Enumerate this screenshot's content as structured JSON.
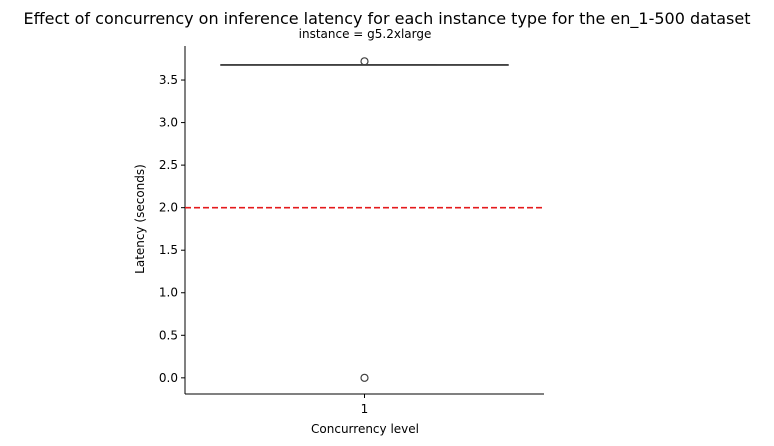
{
  "chart_data": {
    "type": "box",
    "title": "Effect of concurrency on inference latency for each instance type for the en_1-500 dataset",
    "subtitle": "instance = g5.2xlarge",
    "xlabel": "Concurrency level",
    "ylabel": "Latency (seconds)",
    "categories": [
      "1"
    ],
    "ylim": [
      -0.19,
      3.9
    ],
    "yticks": [
      0.0,
      0.5,
      1.0,
      1.5,
      2.0,
      2.5,
      3.0,
      3.5
    ],
    "ytick_labels": [
      "0.0",
      "0.5",
      "1.0",
      "1.5",
      "2.0",
      "2.5",
      "3.0",
      "3.5"
    ],
    "boxes": [
      {
        "category": "1",
        "whisker_low": 3.68,
        "q1": 3.68,
        "median": 3.68,
        "q3": 3.68,
        "whisker_high": 3.68,
        "outliers": [
          3.72,
          0.0
        ]
      }
    ],
    "reference_line": {
      "y": 2.0,
      "color": "#e41a1c",
      "style": "dashed"
    },
    "grid": false,
    "colors": {
      "box": "#404040",
      "axis": "#000000"
    }
  }
}
